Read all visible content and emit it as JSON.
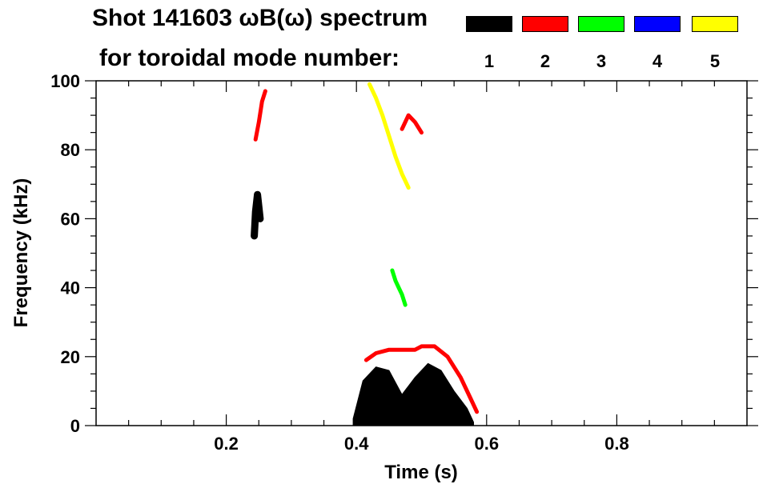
{
  "title_line1": "Shot 141603 ωB(ω) spectrum",
  "title_line2": "for toroidal mode number:",
  "legend": [
    {
      "mode": "1",
      "color": "#000000"
    },
    {
      "mode": "2",
      "color": "#ff0000"
    },
    {
      "mode": "3",
      "color": "#00ff00"
    },
    {
      "mode": "4",
      "color": "#0000ff"
    },
    {
      "mode": "5",
      "color": "#ffff00"
    }
  ],
  "chart_data": {
    "type": "heatmap",
    "xlabel": "Time (s)",
    "ylabel": "Frequency (kHz)",
    "xlim": [
      0.0,
      1.0
    ],
    "ylim": [
      0,
      100
    ],
    "xticks": [
      0.2,
      0.4,
      0.6,
      0.8
    ],
    "xtick_labels": [
      "0.2",
      "0.4",
      "0.6",
      "0.8"
    ],
    "yticks": [
      0,
      20,
      40,
      60,
      80,
      100
    ],
    "ytick_labels": [
      "0",
      "20",
      "40",
      "60",
      "80",
      "100"
    ],
    "regions": [
      {
        "mode": "1",
        "color": "#000000",
        "points": [
          [
            0.395,
            2
          ],
          [
            0.41,
            13
          ],
          [
            0.43,
            17
          ],
          [
            0.45,
            16
          ],
          [
            0.47,
            9
          ],
          [
            0.49,
            14
          ],
          [
            0.51,
            18
          ],
          [
            0.53,
            16
          ],
          [
            0.55,
            10
          ],
          [
            0.57,
            5
          ],
          [
            0.58,
            1
          ]
        ]
      },
      {
        "mode": "1",
        "color": "#000000",
        "points": [
          [
            0.243,
            55
          ],
          [
            0.245,
            62
          ],
          [
            0.248,
            67
          ],
          [
            0.252,
            60
          ]
        ]
      },
      {
        "mode": "2",
        "color": "#ff0000",
        "points": [
          [
            0.415,
            19
          ],
          [
            0.43,
            21
          ],
          [
            0.45,
            22
          ],
          [
            0.47,
            22
          ],
          [
            0.49,
            22
          ],
          [
            0.5,
            23
          ],
          [
            0.52,
            23
          ],
          [
            0.54,
            20
          ],
          [
            0.56,
            14
          ],
          [
            0.575,
            8
          ],
          [
            0.585,
            4
          ]
        ]
      },
      {
        "mode": "2",
        "color": "#ff0000",
        "points": [
          [
            0.245,
            83
          ],
          [
            0.25,
            88
          ],
          [
            0.255,
            94
          ],
          [
            0.26,
            97
          ]
        ]
      },
      {
        "mode": "2",
        "color": "#ff0000",
        "points": [
          [
            0.47,
            86
          ],
          [
            0.48,
            90
          ],
          [
            0.49,
            88
          ],
          [
            0.5,
            85
          ]
        ]
      },
      {
        "mode": "3",
        "color": "#00ff00",
        "points": [
          [
            0.455,
            45
          ],
          [
            0.46,
            42
          ],
          [
            0.465,
            40
          ],
          [
            0.47,
            38
          ],
          [
            0.475,
            35
          ]
        ]
      },
      {
        "mode": "5",
        "color": "#ffff00",
        "points": [
          [
            0.42,
            99
          ],
          [
            0.43,
            95
          ],
          [
            0.44,
            90
          ],
          [
            0.45,
            84
          ],
          [
            0.46,
            78
          ],
          [
            0.47,
            73
          ],
          [
            0.48,
            69
          ]
        ]
      }
    ]
  }
}
